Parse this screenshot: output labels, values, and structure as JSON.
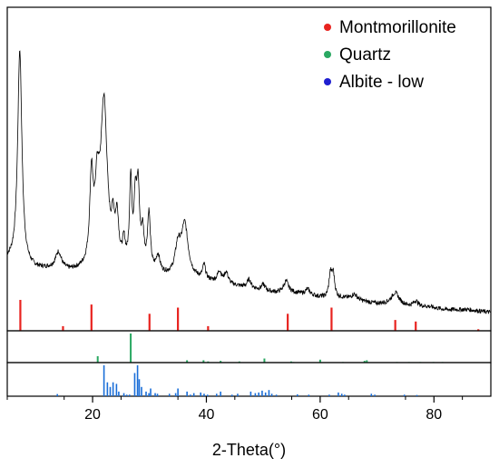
{
  "chart_data": {
    "type": "line",
    "xlabel": "2-Theta(°)",
    "xlim": [
      5,
      90
    ],
    "xticks": [
      20,
      40,
      60,
      80
    ],
    "grid": false,
    "legend_position": "top-right",
    "legend": [
      {
        "label": "Montmorillonite",
        "color": "#e8231f"
      },
      {
        "label": "Quartz",
        "color": "#2aa862"
      },
      {
        "label": "Albite - low",
        "color": "#1f1fd0"
      }
    ],
    "pattern": {
      "color": "#000000",
      "ylim": [
        0,
        100
      ],
      "baseline": [
        [
          5,
          20
        ],
        [
          7,
          18
        ],
        [
          10,
          17
        ],
        [
          13,
          17
        ],
        [
          16,
          16
        ],
        [
          19,
          16
        ],
        [
          22,
          16
        ],
        [
          25,
          16
        ],
        [
          28,
          16
        ],
        [
          31,
          15
        ],
        [
          34,
          14
        ],
        [
          37,
          14
        ],
        [
          40,
          13
        ],
        [
          43,
          12
        ],
        [
          46,
          11
        ],
        [
          49,
          10
        ],
        [
          52,
          9
        ],
        [
          55,
          9
        ],
        [
          58,
          8
        ],
        [
          61,
          7
        ],
        [
          64,
          7
        ],
        [
          67,
          6
        ],
        [
          70,
          5
        ],
        [
          73,
          5
        ],
        [
          76,
          4
        ],
        [
          79,
          4
        ],
        [
          82,
          3
        ],
        [
          86,
          3
        ],
        [
          90,
          2
        ]
      ],
      "peaks": [
        {
          "x": 7.2,
          "h": 77,
          "w": 0.45
        },
        {
          "x": 14.0,
          "h": 6,
          "w": 0.6
        },
        {
          "x": 19.8,
          "h": 30,
          "w": 0.35
        },
        {
          "x": 20.8,
          "h": 24,
          "w": 0.5
        },
        {
          "x": 22.0,
          "h": 58,
          "w": 0.7
        },
        {
          "x": 23.6,
          "h": 12,
          "w": 0.3
        },
        {
          "x": 24.3,
          "h": 16,
          "w": 0.35
        },
        {
          "x": 25.5,
          "h": 8,
          "w": 0.3
        },
        {
          "x": 26.7,
          "h": 30,
          "w": 0.25
        },
        {
          "x": 27.5,
          "h": 22,
          "w": 0.3
        },
        {
          "x": 28.0,
          "h": 26,
          "w": 0.3
        },
        {
          "x": 28.8,
          "h": 12,
          "w": 0.3
        },
        {
          "x": 29.9,
          "h": 20,
          "w": 0.3
        },
        {
          "x": 31.5,
          "h": 6,
          "w": 0.4
        },
        {
          "x": 35.0,
          "h": 10,
          "w": 0.6
        },
        {
          "x": 36.2,
          "h": 18,
          "w": 0.7
        },
        {
          "x": 39.6,
          "h": 5,
          "w": 0.3
        },
        {
          "x": 42.3,
          "h": 4,
          "w": 0.4
        },
        {
          "x": 43.5,
          "h": 4,
          "w": 0.4
        },
        {
          "x": 47.5,
          "h": 3,
          "w": 0.4
        },
        {
          "x": 50.0,
          "h": 2,
          "w": 0.4
        },
        {
          "x": 54.0,
          "h": 4,
          "w": 0.5
        },
        {
          "x": 57.8,
          "h": 2,
          "w": 0.5
        },
        {
          "x": 61.8,
          "h": 8,
          "w": 0.3
        },
        {
          "x": 62.3,
          "h": 8,
          "w": 0.3
        },
        {
          "x": 66.0,
          "h": 2,
          "w": 0.6
        },
        {
          "x": 73.2,
          "h": 4,
          "w": 0.8
        },
        {
          "x": 76.8,
          "h": 2,
          "w": 0.5
        }
      ]
    },
    "reference_patterns": [
      {
        "name": "Montmorillonite",
        "color": "#e8231f",
        "sticks": [
          [
            7.3,
            100
          ],
          [
            14.8,
            15
          ],
          [
            19.8,
            85
          ],
          [
            30.0,
            55
          ],
          [
            35.0,
            75
          ],
          [
            40.3,
            15
          ],
          [
            54.3,
            55
          ],
          [
            62.0,
            75
          ],
          [
            73.2,
            35
          ],
          [
            76.8,
            30
          ],
          [
            87.8,
            5
          ]
        ]
      },
      {
        "name": "Quartz",
        "color": "#2aa862",
        "sticks": [
          [
            20.9,
            22
          ],
          [
            26.7,
            100
          ],
          [
            36.6,
            8
          ],
          [
            39.5,
            8
          ],
          [
            40.3,
            4
          ],
          [
            42.5,
            6
          ],
          [
            45.8,
            4
          ],
          [
            50.2,
            14
          ],
          [
            54.9,
            4
          ],
          [
            55.3,
            2
          ],
          [
            60.0,
            10
          ],
          [
            64.0,
            2
          ],
          [
            67.8,
            6
          ],
          [
            68.2,
            8
          ],
          [
            73.5,
            2
          ],
          [
            75.6,
            2
          ],
          [
            77.6,
            2
          ],
          [
            79.9,
            2
          ],
          [
            81.5,
            2
          ]
        ]
      },
      {
        "name": "Albite - low",
        "color": "#1a6ed8",
        "sticks": [
          [
            13.8,
            7
          ],
          [
            22.0,
            100
          ],
          [
            22.6,
            45
          ],
          [
            23.1,
            30
          ],
          [
            23.6,
            45
          ],
          [
            24.2,
            40
          ],
          [
            24.6,
            15
          ],
          [
            25.5,
            10
          ],
          [
            26.0,
            5
          ],
          [
            26.5,
            5
          ],
          [
            27.4,
            75
          ],
          [
            27.9,
            100
          ],
          [
            28.2,
            55
          ],
          [
            28.6,
            30
          ],
          [
            29.4,
            15
          ],
          [
            29.9,
            10
          ],
          [
            30.2,
            25
          ],
          [
            31.0,
            10
          ],
          [
            31.4,
            8
          ],
          [
            33.5,
            8
          ],
          [
            34.6,
            10
          ],
          [
            35.0,
            25
          ],
          [
            36.6,
            15
          ],
          [
            37.2,
            5
          ],
          [
            37.8,
            10
          ],
          [
            39.0,
            12
          ],
          [
            39.6,
            8
          ],
          [
            40.2,
            5
          ],
          [
            41.8,
            8
          ],
          [
            42.5,
            15
          ],
          [
            44.5,
            5
          ],
          [
            45.5,
            8
          ],
          [
            47.8,
            15
          ],
          [
            48.6,
            10
          ],
          [
            49.2,
            12
          ],
          [
            49.8,
            18
          ],
          [
            50.4,
            12
          ],
          [
            51.0,
            20
          ],
          [
            51.5,
            8
          ],
          [
            52.3,
            5
          ],
          [
            56.0,
            6
          ],
          [
            58.0,
            5
          ],
          [
            61.6,
            5
          ],
          [
            63.2,
            12
          ],
          [
            63.8,
            8
          ],
          [
            64.3,
            5
          ],
          [
            69.0,
            8
          ],
          [
            69.6,
            5
          ],
          [
            74.8,
            5
          ],
          [
            77.0,
            4
          ]
        ]
      }
    ]
  }
}
